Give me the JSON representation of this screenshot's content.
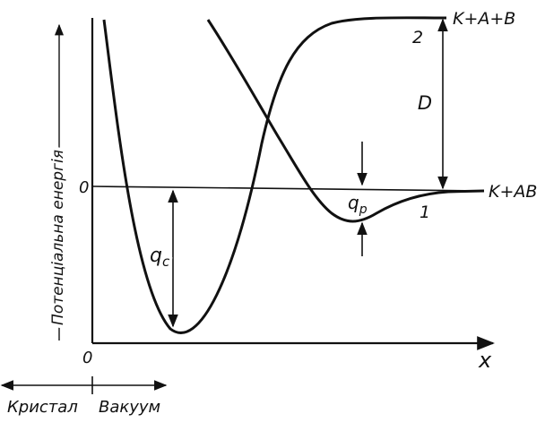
{
  "axes": {
    "y_label": "Потенціальна енергія",
    "x_label": "x",
    "y_zero_label": "0",
    "x_origin_label": "0"
  },
  "curves": {
    "curve_1_label": "1",
    "curve_2_label": "2",
    "curve_1_end_label": "K+AB",
    "curve_2_end_label": "K+A+B"
  },
  "quantities": {
    "qc_label": "q",
    "qc_subscript": "c",
    "qp_label": "q",
    "qp_subscript": "p",
    "d_label": "D"
  },
  "regions": {
    "crystal_label": "Кристал",
    "vacuum_label": "Вакуум"
  },
  "colors": {
    "ink": "#111111",
    "background": "#ffffff"
  }
}
